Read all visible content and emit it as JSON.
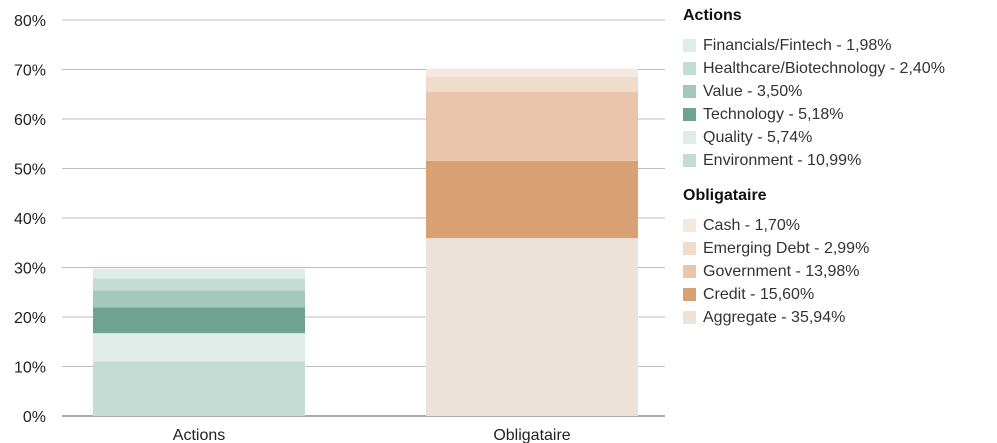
{
  "chart_data": {
    "type": "bar",
    "stacked": true,
    "categories": [
      "Actions",
      "Obligataire"
    ],
    "y_ticks": [
      "0%",
      "10%",
      "20%",
      "30%",
      "40%",
      "50%",
      "60%",
      "70%",
      "80%"
    ],
    "ylim": [
      0,
      80
    ],
    "grid": true,
    "legend_position": "right",
    "groups": [
      {
        "title": "Actions",
        "category_index": 0,
        "items": [
          {
            "name": "Environment",
            "value": 10.99,
            "label": "Environment - 10,99%",
            "color": "#c3ddd4"
          },
          {
            "name": "Quality",
            "value": 5.74,
            "label": "Quality - 5,74%",
            "color": "#dfece7"
          },
          {
            "name": "Technology",
            "value": 5.18,
            "label": "Technology - 5,18%",
            "color": "#6fa391"
          },
          {
            "name": "Value",
            "value": 3.5,
            "label": "Value - 3,50%",
            "color": "#a4c8bb"
          },
          {
            "name": "Healthcare/Biotechnology",
            "value": 2.4,
            "label": "Healthcare/Biotechnology - 2,40%",
            "color": "#c3ddd4"
          },
          {
            "name": "Financials/Fintech",
            "value": 1.98,
            "label": "Financials/Fintech - 1,98%",
            "color": "#dfece7"
          }
        ]
      },
      {
        "title": "Obligataire",
        "category_index": 1,
        "items": [
          {
            "name": "Aggregate",
            "value": 35.94,
            "label": "Aggregate - 35,94%",
            "color": "#ece2d9"
          },
          {
            "name": "Credit",
            "value": 15.6,
            "label": "Credit - 15,60%",
            "color": "#d9a074"
          },
          {
            "name": "Government",
            "value": 13.98,
            "label": "Government - 13,98%",
            "color": "#e9c5ab"
          },
          {
            "name": "Emerging Debt",
            "value": 2.99,
            "label": "Emerging Debt - 2,99%",
            "color": "#f0dccb"
          },
          {
            "name": "Cash",
            "value": 1.7,
            "label": "Cash - 1,70%",
            "color": "#f3e9e0"
          }
        ]
      }
    ]
  }
}
